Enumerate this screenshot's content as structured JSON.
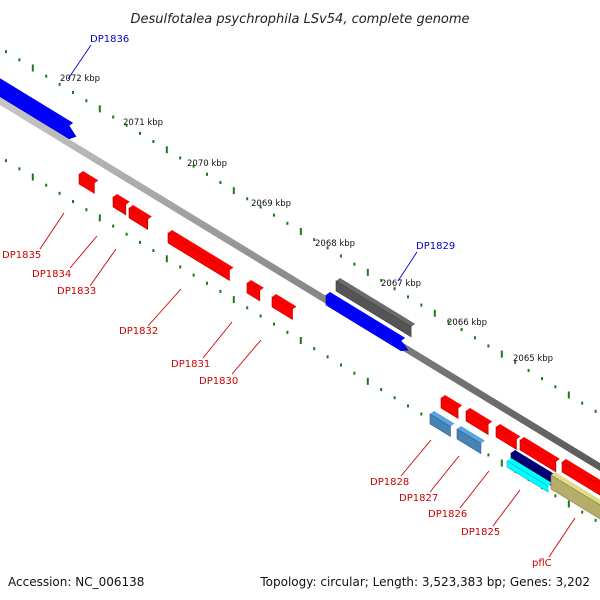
{
  "title": "Desulfotalea psychrophila LSv54, complete genome",
  "accession": "Accession: NC_006138",
  "topology": "Topology: circular; Length: 3,523,383 bp; Genes: 3,202",
  "colors": {
    "forward_gene": "#0000ff",
    "reverse_gene": "#ff0000",
    "forward_label": "#0000cc",
    "reverse_label": "#cc0000",
    "rna_gene": "#555555",
    "dark_gene": "#000066",
    "cyan_gene": "#00ffff",
    "steel_gene": "#4682b4",
    "olive_gene": "#b5ae6a",
    "backbone": "#808080",
    "tick": "#1a7a1a"
  },
  "kbp_labels": [
    "2072 kbp",
    "2071 kbp",
    "2070 kbp",
    "2069 kbp",
    "2068 kbp",
    "2067 kbp",
    "2066 kbp",
    "2065 kbp"
  ],
  "gene_labels": [
    {
      "text": "DP1836",
      "strand": "forward"
    },
    {
      "text": "DP1829",
      "strand": "forward"
    },
    {
      "text": "DP1835",
      "strand": "reverse"
    },
    {
      "text": "DP1834",
      "strand": "reverse"
    },
    {
      "text": "DP1833",
      "strand": "reverse"
    },
    {
      "text": "DP1832",
      "strand": "reverse"
    },
    {
      "text": "DP1831",
      "strand": "reverse"
    },
    {
      "text": "DP1830",
      "strand": "reverse"
    },
    {
      "text": "DP1828",
      "strand": "reverse"
    },
    {
      "text": "DP1827",
      "strand": "reverse"
    },
    {
      "text": "DP1826",
      "strand": "reverse"
    },
    {
      "text": "DP1825",
      "strand": "reverse"
    },
    {
      "text": "pflC",
      "strand": "reverse"
    }
  ]
}
